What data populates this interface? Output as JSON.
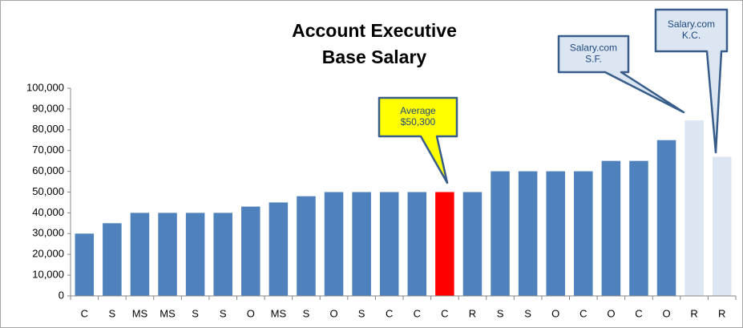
{
  "chart_data": {
    "type": "bar",
    "title": [
      "Account Executive",
      "Base Salary"
    ],
    "categories": [
      "C",
      "S",
      "MS",
      "MS",
      "S",
      "S",
      "O",
      "MS",
      "S",
      "O",
      "S",
      "C",
      "C",
      "C",
      "R",
      "S",
      "S",
      "O",
      "C",
      "O",
      "C",
      "O",
      "R",
      "R"
    ],
    "values": [
      30000,
      35000,
      40000,
      40000,
      40000,
      40000,
      43000,
      45000,
      48000,
      50000,
      50000,
      50000,
      50000,
      50000,
      50000,
      60000,
      60000,
      60000,
      60000,
      65000,
      65000,
      75000,
      84500,
      67000
    ],
    "colors": [
      "#4f81bd",
      "#4f81bd",
      "#4f81bd",
      "#4f81bd",
      "#4f81bd",
      "#4f81bd",
      "#4f81bd",
      "#4f81bd",
      "#4f81bd",
      "#4f81bd",
      "#4f81bd",
      "#4f81bd",
      "#4f81bd",
      "#ff0000",
      "#4f81bd",
      "#4f81bd",
      "#4f81bd",
      "#4f81bd",
      "#4f81bd",
      "#4f81bd",
      "#4f81bd",
      "#4f81bd",
      "#dce6f2",
      "#dce6f2"
    ],
    "ylim": [
      0,
      100000
    ],
    "yticks": [
      0,
      {
        "value": 10000,
        "label": "10,000"
      },
      {
        "value": 20000,
        "label": "20,000"
      },
      {
        "value": 30000,
        "label": "30,000"
      },
      {
        "value": 40000,
        "label": "40,000"
      },
      {
        "value": 50000,
        "label": "50,000"
      },
      {
        "value": 60000,
        "label": "60,000"
      },
      {
        "value": 70000,
        "label": "70,000"
      },
      {
        "value": 80000,
        "label": "80,000"
      },
      {
        "value": 90000,
        "label": "90,000"
      },
      {
        "value": 100000,
        "label": "100,000"
      }
    ],
    "annotations": [
      {
        "lines": [
          "Average",
          "$50,300"
        ],
        "fill": "#ffff00",
        "stroke": "#385d8a"
      },
      {
        "lines": [
          "Salary.com",
          "S.F."
        ],
        "fill": "#dce6f2",
        "stroke": "#385d8a"
      },
      {
        "lines": [
          "Salary.com",
          "K.C."
        ],
        "fill": "#dce6f2",
        "stroke": "#385d8a"
      }
    ]
  }
}
